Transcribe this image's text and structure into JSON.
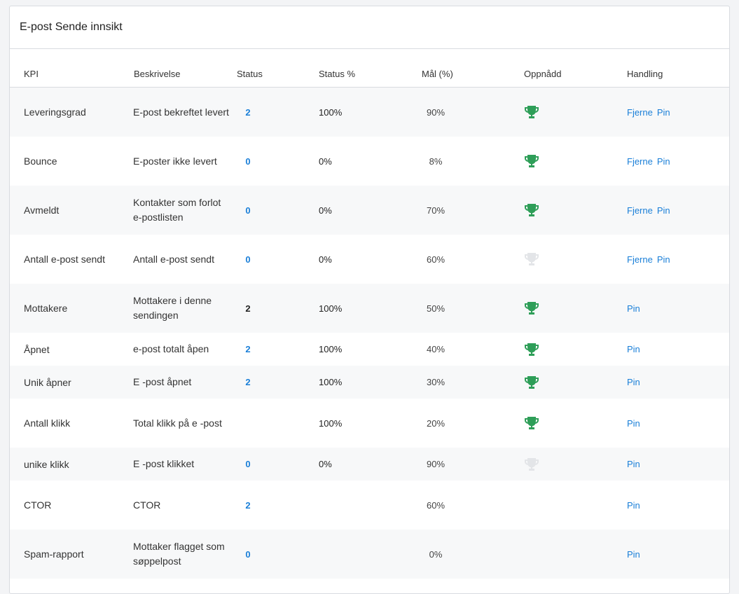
{
  "header": {
    "title": "E-post Sende innsikt"
  },
  "columns": {
    "kpi": "KPI",
    "desc": "Beskrivelse",
    "status": "Status",
    "status_pct": "Status %",
    "goal": "Mål (%)",
    "achieved": "Oppnådd",
    "action": "Handling"
  },
  "colors": {
    "link": "#1a7fd8",
    "trophy_achieved": "#2e9e58",
    "trophy_not_achieved": "#e3e5e8"
  },
  "rows": [
    {
      "kpi": "Leveringsgrad",
      "desc": "E-post bekreftet levert",
      "status": "2",
      "status_link": true,
      "pct": "100%",
      "goal": "90%",
      "trophy": "achieved",
      "actions": [
        "Fjerne",
        "Pin"
      ]
    },
    {
      "kpi": "Bounce",
      "desc": "E-poster ikke levert",
      "status": "0",
      "status_link": true,
      "pct": "0%",
      "goal": "8%",
      "trophy": "achieved",
      "actions": [
        "Fjerne",
        "Pin"
      ]
    },
    {
      "kpi": "Avmeldt",
      "desc": "Kontakter som forlot e-postlisten",
      "status": "0",
      "status_link": true,
      "pct": "0%",
      "goal": "70%",
      "trophy": "achieved",
      "actions": [
        "Fjerne",
        "Pin"
      ]
    },
    {
      "kpi": "Antall e-post sendt",
      "desc": "Antall e-post sendt",
      "status": "0",
      "status_link": true,
      "pct": "0%",
      "goal": "60%",
      "trophy": "not-achieved",
      "actions": [
        "Fjerne",
        "Pin"
      ]
    },
    {
      "kpi": "Mottakere",
      "desc": "Mottakere i denne sendingen",
      "status": "2",
      "status_link": false,
      "pct": "100%",
      "goal": "50%",
      "trophy": "achieved",
      "actions": [
        "Pin"
      ]
    },
    {
      "kpi": "Åpnet",
      "desc": "e-post totalt åpen",
      "status": "2",
      "status_link": true,
      "pct": "100%",
      "goal": "40%",
      "trophy": "achieved",
      "actions": [
        "Pin"
      ]
    },
    {
      "kpi": "Unik åpner",
      "desc": "E -post åpnet",
      "status": "2",
      "status_link": true,
      "pct": "100%",
      "goal": "30%",
      "trophy": "achieved",
      "actions": [
        "Pin"
      ]
    },
    {
      "kpi": "Antall klikk",
      "desc": "Total klikk på e -post",
      "status": "",
      "status_link": true,
      "pct": "100%",
      "goal": "20%",
      "trophy": "achieved",
      "actions": [
        "Pin"
      ]
    },
    {
      "kpi": "unike klikk",
      "desc": "E -post klikket",
      "status": "0",
      "status_link": true,
      "pct": "0%",
      "goal": "90%",
      "trophy": "not-achieved",
      "actions": [
        "Pin"
      ]
    },
    {
      "kpi": "CTOR",
      "desc": "CTOR",
      "status": "2",
      "status_link": true,
      "pct": "",
      "goal": "60%",
      "trophy": "none",
      "actions": [
        "Pin"
      ]
    },
    {
      "kpi": "Spam-rapport",
      "desc": "Mottaker flagget som søppelpost",
      "status": "0",
      "status_link": true,
      "pct": "",
      "goal": "0%",
      "trophy": "none",
      "actions": [
        "Pin"
      ]
    }
  ]
}
